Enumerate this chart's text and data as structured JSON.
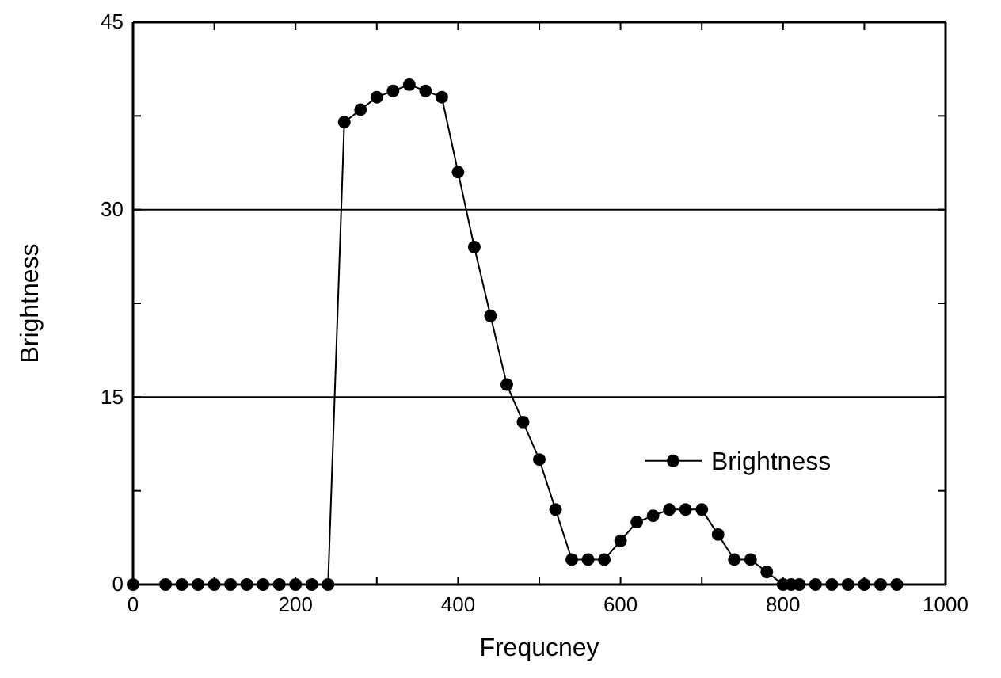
{
  "chart_data": {
    "type": "line",
    "xlabel": "Frequcney",
    "ylabel": "Brightness",
    "x": [
      0,
      40,
      60,
      80,
      100,
      120,
      140,
      160,
      180,
      200,
      220,
      240,
      260,
      280,
      300,
      320,
      340,
      360,
      380,
      400,
      420,
      440,
      460,
      480,
      500,
      520,
      540,
      560,
      580,
      600,
      620,
      640,
      660,
      680,
      700,
      720,
      740,
      760,
      780,
      800,
      810,
      820,
      840,
      860,
      880,
      900,
      920,
      940
    ],
    "series": [
      {
        "name": "Brightness",
        "color": "#000000",
        "values": [
          0,
          0,
          0,
          0,
          0,
          0,
          0,
          0,
          0,
          0,
          0,
          0,
          37,
          38,
          39,
          39.5,
          40,
          39.5,
          39,
          33,
          27,
          21.5,
          16,
          13,
          10,
          6,
          2,
          2,
          2,
          3.5,
          5,
          5.5,
          6,
          6,
          6,
          4,
          2,
          2,
          1,
          0,
          0,
          0,
          0,
          0,
          0,
          0,
          0,
          0
        ]
      }
    ],
    "xlim": [
      0,
      1000
    ],
    "xticks": [
      0,
      {
        "value": 100,
        "label": null
      },
      200,
      {
        "value": 300,
        "label": null
      },
      400,
      {
        "value": 500,
        "label": null
      },
      600,
      {
        "value": 700,
        "label": null
      },
      800,
      {
        "value": 900,
        "label": null
      },
      1000
    ],
    "ylim": [
      0,
      45
    ],
    "yticks": [
      0,
      {
        "value": 7.5,
        "label": null
      },
      15,
      {
        "value": 22.5,
        "label": null
      },
      30,
      {
        "value": 37.5,
        "label": null
      },
      45
    ],
    "grid": "y",
    "legend": "right",
    "marker": "circle",
    "line_style": "solid"
  }
}
